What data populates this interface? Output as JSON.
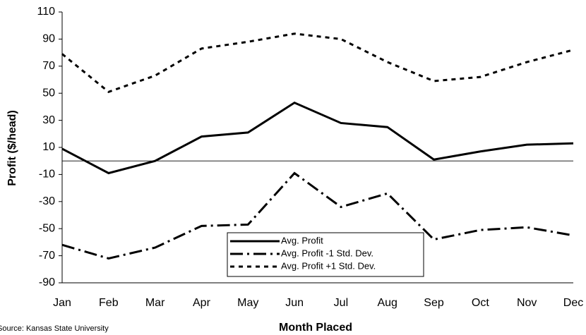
{
  "chart_data": {
    "type": "line",
    "x_label": "Month Placed",
    "y_label": "Profit ($/head)",
    "source": "Source: Kansas State University",
    "categories": [
      "Jan",
      "Feb",
      "Mar",
      "Apr",
      "May",
      "Jun",
      "Jul",
      "Aug",
      "Sep",
      "Oct",
      "Nov",
      "Dec"
    ],
    "series": [
      {
        "name": "Avg. Profit",
        "color": "#000000",
        "style": "solid",
        "values": [
          9,
          -9,
          0,
          18,
          21,
          43,
          28,
          25,
          1,
          7,
          12,
          13
        ]
      },
      {
        "name": "Avg. Profit -1 Std. Dev.",
        "color": "#000000",
        "style": "dashdot",
        "values": [
          -62,
          -72,
          -64,
          -48,
          -47,
          -9,
          -34,
          -24,
          -58,
          -51,
          -49,
          -55
        ]
      },
      {
        "name": "Avg. Profit +1 Std. Dev.",
        "color": "#000000",
        "style": "dotted",
        "values": [
          79,
          51,
          63,
          83,
          88,
          94,
          90,
          73,
          59,
          62,
          73,
          82
        ]
      }
    ],
    "ylim": [
      -90,
      110
    ],
    "yticks": [
      -90,
      -70,
      -50,
      -30,
      -10,
      10,
      30,
      50,
      70,
      90,
      110
    ],
    "reference_line": 0,
    "legend": "bottom-center"
  }
}
